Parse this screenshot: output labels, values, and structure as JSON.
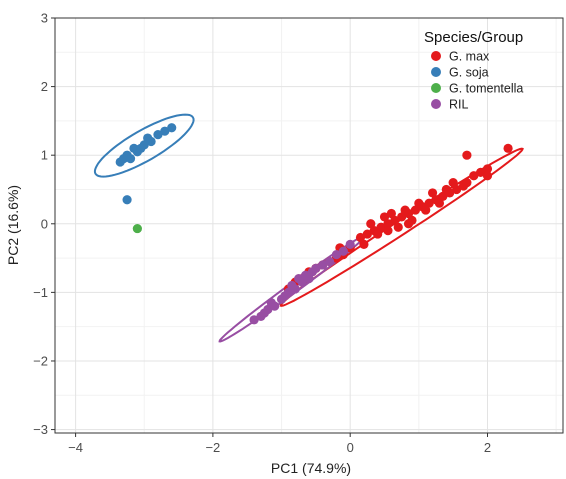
{
  "chart_data": {
    "type": "scatter",
    "xlabel": "PC1 (74.9%)",
    "ylabel": "PC2 (16.6%)",
    "xlim": [
      -4.3,
      3.1
    ],
    "ylim": [
      -3.05,
      3.0
    ],
    "x_ticks": [
      -4,
      -2,
      0,
      2
    ],
    "y_ticks": [
      -3,
      -2,
      -1,
      0,
      1,
      2,
      3
    ],
    "grid": true,
    "legend": {
      "title": "Species/Group",
      "position": "top-right"
    },
    "series": [
      {
        "name": "G. max",
        "color": "#e41a1c",
        "points": [
          [
            0.15,
            -0.2
          ],
          [
            0.25,
            -0.15
          ],
          [
            0.35,
            -0.1
          ],
          [
            0.45,
            -0.05
          ],
          [
            0.55,
            0.0
          ],
          [
            0.65,
            0.05
          ],
          [
            0.75,
            0.1
          ],
          [
            0.85,
            0.15
          ],
          [
            0.95,
            0.2
          ],
          [
            1.05,
            0.25
          ],
          [
            1.15,
            0.3
          ],
          [
            1.25,
            0.35
          ],
          [
            1.35,
            0.4
          ],
          [
            1.45,
            0.45
          ],
          [
            1.55,
            0.5
          ],
          [
            1.65,
            0.55
          ],
          [
            0.5,
            0.1
          ],
          [
            0.6,
            0.15
          ],
          [
            0.8,
            0.2
          ],
          [
            1.0,
            0.3
          ],
          [
            1.1,
            0.2
          ],
          [
            1.3,
            0.3
          ],
          [
            0.9,
            0.05
          ],
          [
            0.7,
            -0.05
          ],
          [
            0.4,
            -0.15
          ],
          [
            0.2,
            -0.3
          ],
          [
            0.0,
            -0.35
          ],
          [
            -0.1,
            -0.45
          ],
          [
            -0.2,
            -0.5
          ],
          [
            -0.3,
            -0.55
          ],
          [
            -0.4,
            -0.6
          ],
          [
            -0.5,
            -0.65
          ],
          [
            -0.6,
            -0.7
          ],
          [
            -0.7,
            -0.8
          ],
          [
            -0.8,
            -0.85
          ],
          [
            -0.9,
            -0.95
          ],
          [
            1.2,
            0.45
          ],
          [
            1.4,
            0.5
          ],
          [
            0.3,
            0.0
          ],
          [
            -0.15,
            -0.35
          ],
          [
            1.7,
            0.6
          ],
          [
            1.8,
            0.7
          ],
          [
            1.9,
            0.75
          ],
          [
            2.0,
            0.8
          ],
          [
            2.3,
            1.1
          ],
          [
            1.7,
            1.0
          ],
          [
            2.0,
            0.7
          ],
          [
            1.5,
            0.6
          ],
          [
            0.55,
            -0.1
          ],
          [
            0.85,
            0.0
          ]
        ]
      },
      {
        "name": "G. soja",
        "color": "#377eb8",
        "points": [
          [
            -3.35,
            0.9
          ],
          [
            -3.3,
            0.95
          ],
          [
            -3.25,
            1.0
          ],
          [
            -3.2,
            0.95
          ],
          [
            -3.1,
            1.05
          ],
          [
            -3.0,
            1.15
          ],
          [
            -2.9,
            1.2
          ],
          [
            -2.8,
            1.3
          ],
          [
            -2.7,
            1.35
          ],
          [
            -2.6,
            1.4
          ],
          [
            -3.15,
            1.1
          ],
          [
            -3.05,
            1.1
          ],
          [
            -2.95,
            1.25
          ],
          [
            -3.25,
            0.35
          ]
        ]
      },
      {
        "name": "G. tomentella",
        "color": "#4daf4a",
        "points": [
          [
            -3.1,
            -0.07
          ]
        ]
      },
      {
        "name": "RIL",
        "color": "#984ea3",
        "points": [
          [
            -1.4,
            -1.4
          ],
          [
            -1.3,
            -1.35
          ],
          [
            -1.25,
            -1.3
          ],
          [
            -1.2,
            -1.25
          ],
          [
            -1.1,
            -1.2
          ],
          [
            -1.0,
            -1.1
          ],
          [
            -0.95,
            -1.05
          ],
          [
            -0.9,
            -1.0
          ],
          [
            -0.8,
            -0.95
          ],
          [
            -0.7,
            -0.85
          ],
          [
            -0.6,
            -0.8
          ],
          [
            -0.55,
            -0.7
          ],
          [
            -0.5,
            -0.65
          ],
          [
            -0.4,
            -0.6
          ],
          [
            -0.3,
            -0.55
          ],
          [
            -0.2,
            -0.45
          ],
          [
            -0.1,
            -0.4
          ],
          [
            0.0,
            -0.3
          ],
          [
            -0.75,
            -0.8
          ],
          [
            -0.65,
            -0.75
          ],
          [
            -1.15,
            -1.15
          ],
          [
            -0.85,
            -0.9
          ]
        ]
      }
    ],
    "ellipses": [
      {
        "group": "G. soja",
        "center": [
          -3.0,
          1.14
        ],
        "semi_major": 0.82,
        "semi_minor": 0.22,
        "angle_deg": 30
      },
      {
        "group": "G. max",
        "center": [
          0.75,
          -0.05
        ],
        "semi_major": 2.1,
        "semi_minor": 0.1,
        "angle_deg": 33
      },
      {
        "group": "RIL",
        "center": [
          -0.85,
          -0.95
        ],
        "semi_major": 1.3,
        "semi_minor": 0.07,
        "angle_deg": 36
      }
    ]
  }
}
